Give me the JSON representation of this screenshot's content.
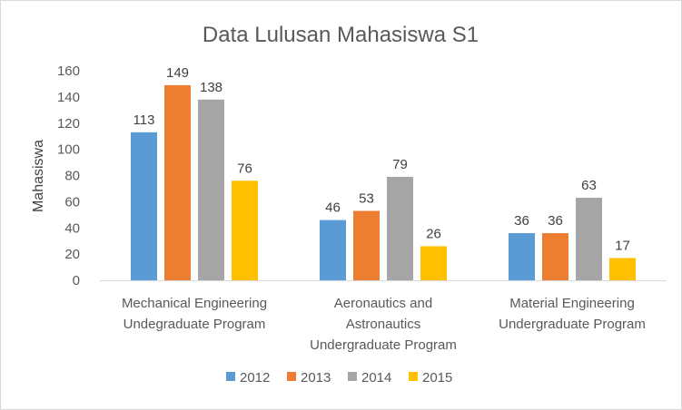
{
  "chart_data": {
    "type": "bar",
    "title": "Data Lulusan Mahasiswa S1",
    "ylabel": "Mahasiswa",
    "xlabel": "",
    "ylim": [
      0,
      160
    ],
    "yticks": [
      0,
      20,
      40,
      60,
      80,
      100,
      120,
      140,
      160
    ],
    "grid": false,
    "legend_position": "bottom",
    "categories": [
      [
        "Mechanical Engineering",
        "Undegraduate Program"
      ],
      [
        "Aeronautics and",
        "Astronautics",
        "Undergraduate Program"
      ],
      [
        "Material Engineering",
        "Undergraduate Program"
      ]
    ],
    "series": [
      {
        "name": "2012",
        "color": "#5b9bd5",
        "values": [
          113,
          46,
          36
        ]
      },
      {
        "name": "2013",
        "color": "#ed7d31",
        "values": [
          149,
          53,
          36
        ]
      },
      {
        "name": "2014",
        "color": "#a5a5a5",
        "values": [
          138,
          79,
          63
        ]
      },
      {
        "name": "2015",
        "color": "#ffc000",
        "values": [
          76,
          26,
          17
        ]
      }
    ],
    "data_labels": true
  }
}
